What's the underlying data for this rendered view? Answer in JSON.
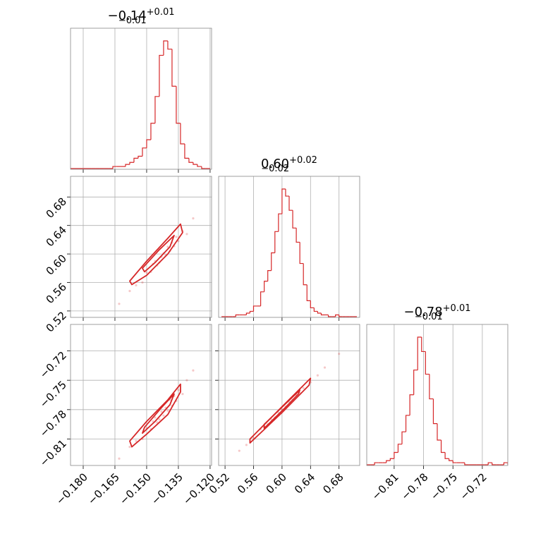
{
  "chart_data": [
    {
      "type": "histogram",
      "title": "−0.14",
      "title_sup": "+0.01",
      "title_sub": "−0.01",
      "color": "#d62728",
      "bins": [
        -0.186,
        -0.184,
        -0.182,
        -0.18,
        -0.178,
        -0.176,
        -0.174,
        -0.172,
        -0.17,
        -0.168,
        -0.166,
        -0.164,
        -0.162,
        -0.16,
        -0.158,
        -0.156,
        -0.154,
        -0.152,
        -0.15,
        -0.148,
        -0.146,
        -0.144,
        -0.142,
        -0.14,
        -0.138,
        -0.136,
        -0.134,
        -0.132,
        -0.13,
        -0.128,
        -0.126,
        -0.124,
        -0.122,
        -0.12
      ],
      "values": [
        0,
        0,
        0,
        0,
        0,
        0,
        0,
        0,
        0,
        0,
        1,
        1,
        1,
        2,
        3,
        5,
        6,
        10,
        14,
        22,
        35,
        55,
        62,
        58,
        40,
        22,
        12,
        5,
        3,
        2,
        1,
        0,
        0
      ]
    },
    {
      "type": "scatter",
      "color": "#d62728",
      "x": [
        -0.163,
        -0.158,
        -0.155,
        -0.152,
        -0.15,
        -0.148,
        -0.146,
        -0.145,
        -0.143,
        -0.142,
        -0.141,
        -0.14,
        -0.139,
        -0.138,
        -0.137,
        -0.136,
        -0.135,
        -0.133,
        -0.131,
        -0.128,
        -0.147,
        -0.144
      ],
      "values": [
        0.53,
        0.548,
        0.556,
        0.56,
        0.574,
        0.575,
        0.59,
        0.584,
        0.596,
        0.601,
        0.598,
        0.61,
        0.604,
        0.616,
        0.611,
        0.624,
        0.618,
        0.632,
        0.628,
        0.65,
        0.586,
        0.588
      ],
      "contours": [
        {
          "x": [
            -0.158,
            -0.15,
            -0.14,
            -0.134,
            -0.133,
            -0.14,
            -0.15,
            -0.157
          ],
          "y": [
            0.562,
            0.59,
            0.622,
            0.642,
            0.63,
            0.6,
            0.57,
            0.557
          ]
        },
        {
          "x": [
            -0.152,
            -0.144,
            -0.137,
            -0.139,
            -0.146,
            -0.151
          ],
          "y": [
            0.58,
            0.606,
            0.626,
            0.61,
            0.588,
            0.575
          ]
        }
      ],
      "ylim": [
        0.511,
        0.709
      ],
      "yticks": [
        0.52,
        0.56,
        {
          "value": 0.6,
          "label": "0.60"
        },
        0.64,
        0.68
      ]
    },
    {
      "type": "histogram",
      "title": "0.60",
      "title_sup": "+0.02",
      "title_sub": "−0.02",
      "color": "#d62728",
      "bins": [
        0.515,
        0.52,
        0.525,
        0.53,
        0.535,
        0.54,
        0.545,
        0.55,
        0.555,
        0.56,
        0.565,
        0.57,
        0.575,
        0.58,
        0.585,
        0.59,
        0.595,
        0.6,
        0.605,
        0.61,
        0.615,
        0.62,
        0.625,
        0.63,
        0.635,
        0.64,
        0.645,
        0.65,
        0.655,
        0.66,
        0.665,
        0.67,
        0.675,
        0.68,
        0.685,
        0.69,
        0.695,
        0.7,
        0.705
      ],
      "values": [
        0,
        0,
        0,
        0,
        1,
        1,
        1,
        2,
        3,
        6,
        6,
        14,
        20,
        26,
        36,
        48,
        58,
        72,
        68,
        60,
        50,
        42,
        30,
        18,
        9,
        5,
        3,
        2,
        1,
        1,
        0,
        0,
        1,
        0,
        0,
        0,
        0,
        0
      ]
    },
    {
      "type": "scatter",
      "color": "#d62728",
      "x": [
        -0.163,
        -0.158,
        -0.155,
        -0.152,
        -0.15,
        -0.148,
        -0.146,
        -0.145,
        -0.143,
        -0.142,
        -0.141,
        -0.14,
        -0.139,
        -0.138,
        -0.137,
        -0.136,
        -0.135,
        -0.133,
        -0.131,
        -0.128,
        -0.147,
        -0.144
      ],
      "values": [
        -0.83,
        -0.818,
        -0.812,
        -0.81,
        -0.799,
        -0.8,
        -0.788,
        -0.793,
        -0.782,
        -0.786,
        -0.778,
        -0.781,
        -0.77,
        -0.776,
        -0.766,
        -0.771,
        -0.76,
        -0.764,
        -0.75,
        -0.74,
        -0.792,
        -0.79
      ],
      "contours": [
        {
          "x": [
            -0.158,
            -0.15,
            -0.14,
            -0.134,
            -0.134,
            -0.14,
            -0.15,
            -0.157
          ],
          "y": [
            -0.812,
            -0.792,
            -0.77,
            -0.754,
            -0.762,
            -0.785,
            -0.805,
            -0.818
          ]
        },
        {
          "x": [
            -0.151,
            -0.143,
            -0.137,
            -0.139,
            -0.146,
            -0.152
          ],
          "y": [
            -0.798,
            -0.778,
            -0.764,
            -0.775,
            -0.792,
            -0.804
          ]
        }
      ],
      "xlim": [
        -0.186,
        -0.1193
      ],
      "xticks": [
        {
          "value": -0.18,
          "label": "−0.180"
        },
        {
          "value": -0.165,
          "label": "−0.165"
        },
        {
          "value": -0.15,
          "label": "−0.150"
        },
        {
          "value": -0.135,
          "label": "−0.135"
        },
        {
          "value": -0.12,
          "label": "−0.120"
        }
      ],
      "ylim": [
        -0.837,
        -0.693
      ],
      "yticks": [
        {
          "value": -0.81,
          "label": "−0.81"
        },
        {
          "value": -0.78,
          "label": "−0.78"
        },
        {
          "value": -0.75,
          "label": "−0.75"
        },
        {
          "value": -0.72,
          "label": "−0.72"
        }
      ]
    },
    {
      "type": "scatter",
      "color": "#d62728",
      "x": [
        0.54,
        0.55,
        0.56,
        0.57,
        0.575,
        0.58,
        0.585,
        0.59,
        0.595,
        0.6,
        0.605,
        0.61,
        0.615,
        0.62,
        0.625,
        0.63,
        0.64,
        0.65,
        0.66,
        0.68
      ],
      "values": [
        -0.822,
        -0.816,
        -0.809,
        -0.8,
        -0.798,
        -0.795,
        -0.79,
        -0.788,
        -0.783,
        -0.78,
        -0.777,
        -0.772,
        -0.77,
        -0.765,
        -0.763,
        -0.758,
        -0.752,
        -0.745,
        -0.737,
        -0.723
      ],
      "contours": [
        {
          "x": [
            0.555,
            0.6,
            0.64,
            0.638,
            0.6,
            0.555
          ],
          "y": [
            -0.81,
            -0.777,
            -0.748,
            -0.755,
            -0.783,
            -0.814
          ]
        },
        {
          "x": [
            0.575,
            0.605,
            0.625,
            0.623,
            0.603,
            0.575
          ],
          "y": [
            -0.795,
            -0.774,
            -0.76,
            -0.764,
            -0.779,
            -0.799
          ]
        }
      ],
      "xlim": [
        0.511,
        0.709
      ],
      "xticks": [
        0.52,
        0.56,
        {
          "value": 0.6,
          "label": "0.60"
        },
        0.64,
        0.68
      ]
    },
    {
      "type": "histogram",
      "title": "−0.78",
      "title_sup": "+0.01",
      "title_sub": "−0.01",
      "color": "#d62728",
      "bins": [
        -0.838,
        -0.834,
        -0.83,
        -0.826,
        -0.822,
        -0.818,
        -0.814,
        -0.81,
        -0.806,
        -0.802,
        -0.798,
        -0.794,
        -0.79,
        -0.786,
        -0.782,
        -0.778,
        -0.774,
        -0.77,
        -0.766,
        -0.762,
        -0.758,
        -0.754,
        -0.75,
        -0.746,
        -0.742,
        -0.738,
        -0.734,
        -0.73,
        -0.726,
        -0.722,
        -0.718,
        -0.714,
        -0.71,
        -0.706,
        -0.702,
        -0.698,
        -0.694
      ],
      "values": [
        0,
        0,
        1,
        1,
        1,
        2,
        3,
        6,
        10,
        16,
        24,
        34,
        46,
        62,
        55,
        44,
        32,
        20,
        12,
        6,
        3,
        2,
        1,
        1,
        1,
        0,
        0,
        0,
        0,
        0,
        0,
        1,
        0,
        0,
        0,
        1
      ],
      "xlim": [
        -0.838,
        -0.694
      ],
      "xticks": [
        {
          "value": -0.81,
          "label": "−0.81"
        },
        {
          "value": -0.78,
          "label": "−0.78"
        },
        {
          "value": -0.75,
          "label": "−0.75"
        },
        {
          "value": -0.72,
          "label": "−0.72"
        }
      ]
    }
  ]
}
